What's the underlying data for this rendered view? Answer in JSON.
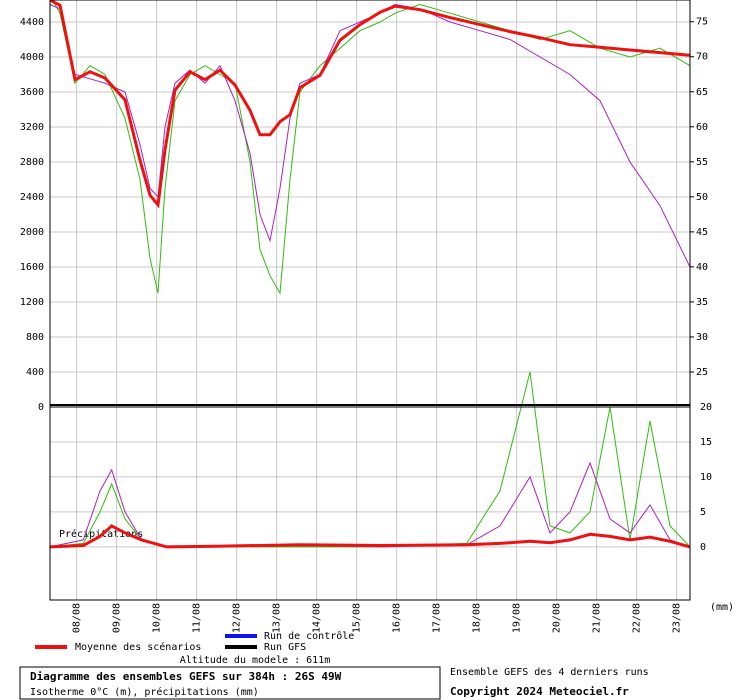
{
  "chart_data": [
    {
      "type": "line",
      "label": "Isotherme 0°C (m), précipitations (mm)",
      "xlim": [
        0,
        384
      ],
      "x": [
        0,
        6,
        15,
        24,
        33,
        45,
        54,
        60,
        64.8,
        69,
        75,
        84,
        93,
        102,
        111,
        120,
        126,
        132,
        138,
        144,
        150,
        162,
        174,
        186,
        198,
        207,
        222,
        240,
        258,
        276,
        294,
        312,
        330,
        348,
        366,
        384
      ],
      "series": [
        {
          "color": "#33bb11",
          "values": [
            4700,
            4500,
            3700,
            3900,
            3800,
            3300,
            2600,
            1700,
            1300,
            2500,
            3500,
            3800,
            3900,
            3800,
            3700,
            2800,
            1800,
            1500,
            1300,
            2600,
            3600,
            3900,
            4100,
            4300,
            4400,
            4500,
            4600,
            4500,
            4400,
            4300,
            4200,
            4300,
            4100,
            4000,
            4100,
            3900
          ]
        },
        {
          "color": "#aa22bb",
          "values": [
            4600,
            4550,
            3800,
            3750,
            3700,
            3600,
            3000,
            2500,
            2400,
            3200,
            3700,
            3850,
            3700,
            3900,
            3500,
            2900,
            2200,
            1900,
            2500,
            3300,
            3700,
            3800,
            4300,
            4400,
            4500,
            4600,
            4550,
            4400,
            4300,
            4200,
            4000,
            3800,
            3500,
            2800,
            2300,
            1600
          ]
        },
        {
          "color": "#ee1111",
          "values": [
            4650,
            4590,
            3740,
            3830,
            3760,
            3510,
            2820,
            2420,
            2310,
            2940,
            3620,
            3830,
            3740,
            3850,
            3680,
            3390,
            3110,
            3110,
            3260,
            3340,
            3650,
            3790,
            4190,
            4370,
            4510,
            4580,
            4540,
            4450,
            4370,
            4290,
            4220,
            4140,
            4110,
            4080,
            4050,
            4020
          ]
        }
      ],
      "ylim": [
        0,
        4651
      ],
      "yticks": [
        0,
        400,
        800,
        1200,
        1600,
        2000,
        2400,
        2800,
        3200,
        3600,
        4000,
        4400
      ],
      "y2lim": [
        20,
        78.1
      ],
      "y2ticks": [
        25,
        30,
        35,
        40,
        45,
        50,
        55,
        60,
        65,
        70,
        75
      ]
    },
    {
      "type": "line",
      "label": "Précipitations",
      "unit": "(mm)",
      "xlim": [
        0,
        384
      ],
      "x": [
        0,
        20,
        30,
        37,
        45,
        55,
        70,
        100,
        150,
        200,
        250,
        270,
        288,
        300,
        312,
        324,
        336,
        348,
        360,
        372,
        384
      ],
      "series": [
        {
          "color": "#33bb11",
          "values": [
            0,
            0.5,
            5,
            9,
            4,
            1,
            0,
            0,
            0,
            0,
            0.5,
            8,
            25,
            3,
            2,
            5,
            20,
            1,
            18,
            3,
            0
          ]
        },
        {
          "color": "#aa22bb",
          "values": [
            0,
            1,
            8,
            11,
            5,
            1,
            0,
            0,
            0.2,
            0,
            0.3,
            3,
            10,
            2,
            5,
            12,
            4,
            2,
            6,
            1,
            0
          ]
        },
        {
          "color": "#ee1111",
          "values": [
            0,
            0.2,
            1.5,
            3,
            2,
            1,
            0,
            0.1,
            0.3,
            0.2,
            0.3,
            0.5,
            0.8,
            0.6,
            1,
            1.8,
            1.5,
            1,
            1.4,
            0.8,
            0
          ]
        }
      ],
      "ylim": [
        -7.6,
        20
      ],
      "y2ticks": [
        0,
        5,
        10,
        15,
        20
      ],
      "xticks": [
        {
          "value": 16,
          "label": "08/08"
        },
        {
          "value": 40,
          "label": "09/08"
        },
        {
          "value": 64,
          "label": "10/08"
        },
        {
          "value": 88,
          "label": "11/08"
        },
        {
          "value": 112,
          "label": "12/08"
        },
        {
          "value": 136,
          "label": "13/08"
        },
        {
          "value": 160,
          "label": "14/08"
        },
        {
          "value": 184,
          "label": "15/08"
        },
        {
          "value": 208,
          "label": "16/08"
        },
        {
          "value": 232,
          "label": "17/08"
        },
        {
          "value": 256,
          "label": "18/08"
        },
        {
          "value": 280,
          "label": "19/08"
        },
        {
          "value": 304,
          "label": "20/08"
        },
        {
          "value": 328,
          "label": "21/08"
        },
        {
          "value": 352,
          "label": "22/08"
        },
        {
          "value": 376,
          "label": "23/08"
        }
      ]
    }
  ],
  "legend": [
    {
      "name": "Moyenne des scénarios",
      "color": "#ee1111"
    },
    {
      "name": "Run de contrôle",
      "color": "#1111ee"
    },
    {
      "name": "Run GFS",
      "color": "#000000"
    }
  ],
  "altitude": "Altitude du modele : 611m",
  "footer": {
    "title": "Diagramme des ensembles GEFS sur 384h : 26S 49W",
    "subtitle": "Isotherme 0°C (m), précipitations (mm)",
    "runs": "Ensemble GEFS des 4 derniers runs",
    "copyright": "Copyright 2024 Meteociel.fr"
  }
}
